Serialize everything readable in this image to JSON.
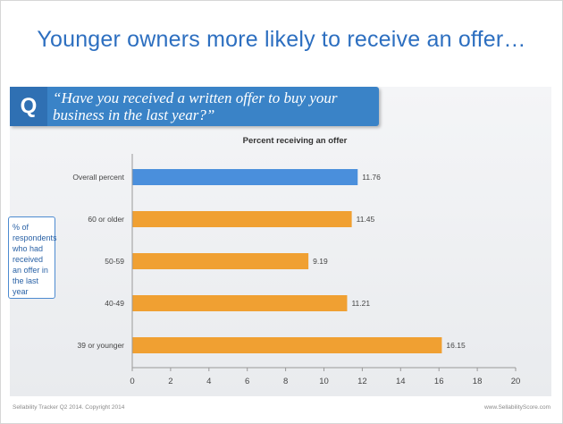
{
  "slide": {
    "headline": "Younger owners more likely to receive an offer…",
    "question_mark": "Q",
    "question": "“Have you received a written offer to buy your business in the last year?”",
    "side_note": "% of respondents who had received an offer in the last year",
    "footer_left": "Sellability Tracker Q2 2014. Copyright 2014",
    "footer_right": "www.SellabilityScore.com"
  },
  "colors": {
    "highlight_bar": "#4a8fdc",
    "bar": "#f0a032",
    "headline": "#2d6fc0",
    "question_bar": "#3a83c7"
  },
  "chart_data": {
    "type": "bar",
    "orientation": "horizontal",
    "title": "Percent receiving an offer",
    "categories": [
      "Overall percent",
      "60 or older",
      "50-59",
      "40-49",
      "39 or younger"
    ],
    "values": [
      11.76,
      11.45,
      9.19,
      11.21,
      16.15
    ],
    "value_labels": [
      "11.76",
      "11.45",
      "9.19",
      "11.21",
      "16.15"
    ],
    "highlight_index": 0,
    "xlim": [
      0,
      20
    ],
    "xticks": [
      "0",
      "2",
      "4",
      "6",
      "8",
      "10",
      "12",
      "14",
      "16",
      "18",
      "20"
    ],
    "grid": false,
    "legend": "none"
  }
}
